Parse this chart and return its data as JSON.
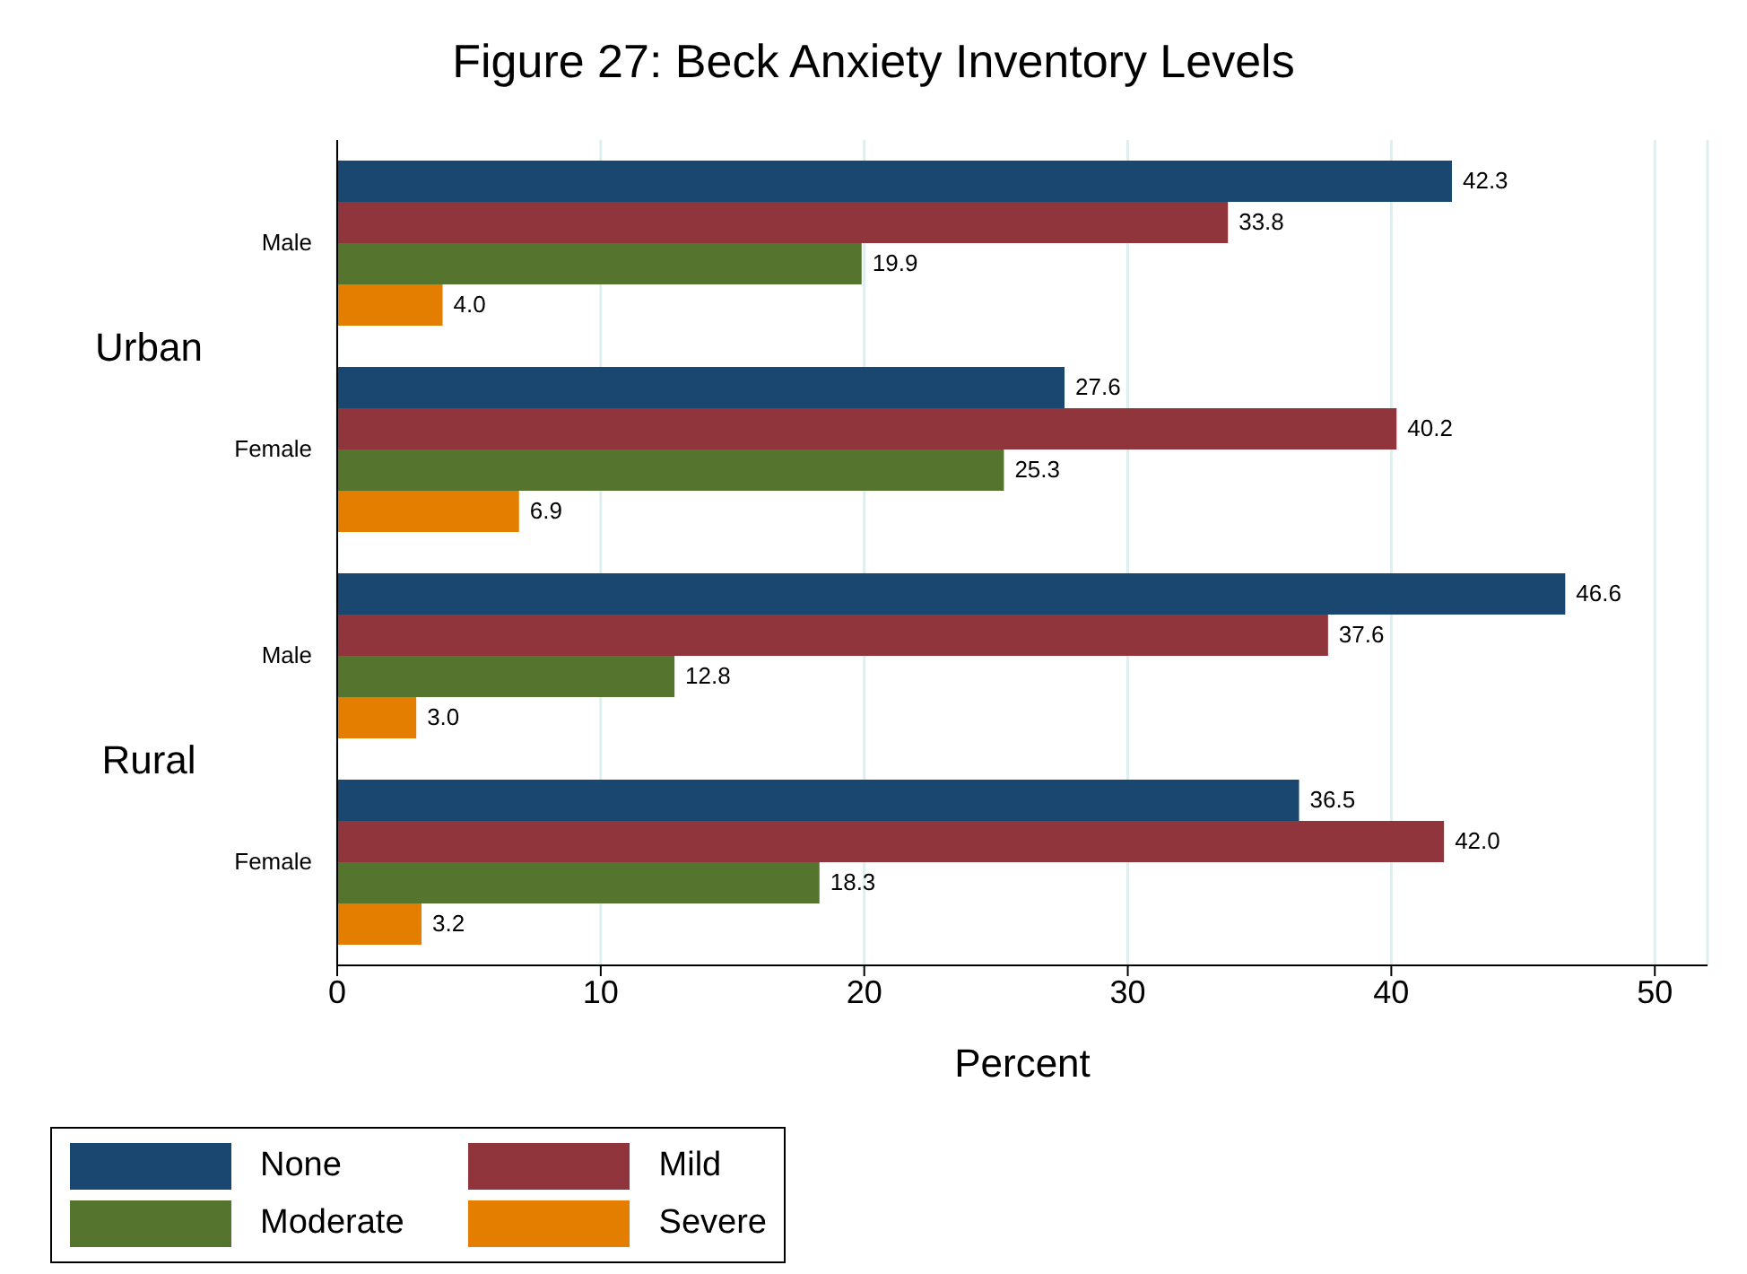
{
  "chart_data": {
    "type": "bar",
    "orientation": "horizontal",
    "title": "Figure 27: Beck Anxiety Inventory Levels",
    "xlabel": "Percent",
    "categories": [
      "Male",
      "Female",
      "Male",
      "Female"
    ],
    "annotations": [
      "Urban",
      "Rural"
    ],
    "series": [
      {
        "name": "None",
        "color": "#1a476f",
        "values": [
          42.3,
          27.6,
          46.6,
          36.5
        ],
        "value_labels": [
          "42.3",
          "27.6",
          "46.6",
          "36.5"
        ]
      },
      {
        "name": "Mild",
        "color": "#90353b",
        "values": [
          33.8,
          40.2,
          37.6,
          42.0
        ],
        "value_labels": [
          "33.8",
          "40.2",
          "37.6",
          "42.0"
        ]
      },
      {
        "name": "Moderate",
        "color": "#55752f",
        "values": [
          19.9,
          25.3,
          12.8,
          18.3
        ],
        "value_labels": [
          "19.9",
          "25.3",
          "12.8",
          "18.3"
        ]
      },
      {
        "name": "Severe",
        "color": "#e37e00",
        "values": [
          4.0,
          6.9,
          3.0,
          3.2
        ],
        "value_labels": [
          "4.0",
          "6.9",
          "3.0",
          "3.2"
        ]
      }
    ],
    "xlim": [
      0,
      52
    ],
    "xticks": [
      0,
      10,
      20,
      30,
      40,
      50
    ],
    "grid": "x",
    "legend": "bottom left"
  }
}
